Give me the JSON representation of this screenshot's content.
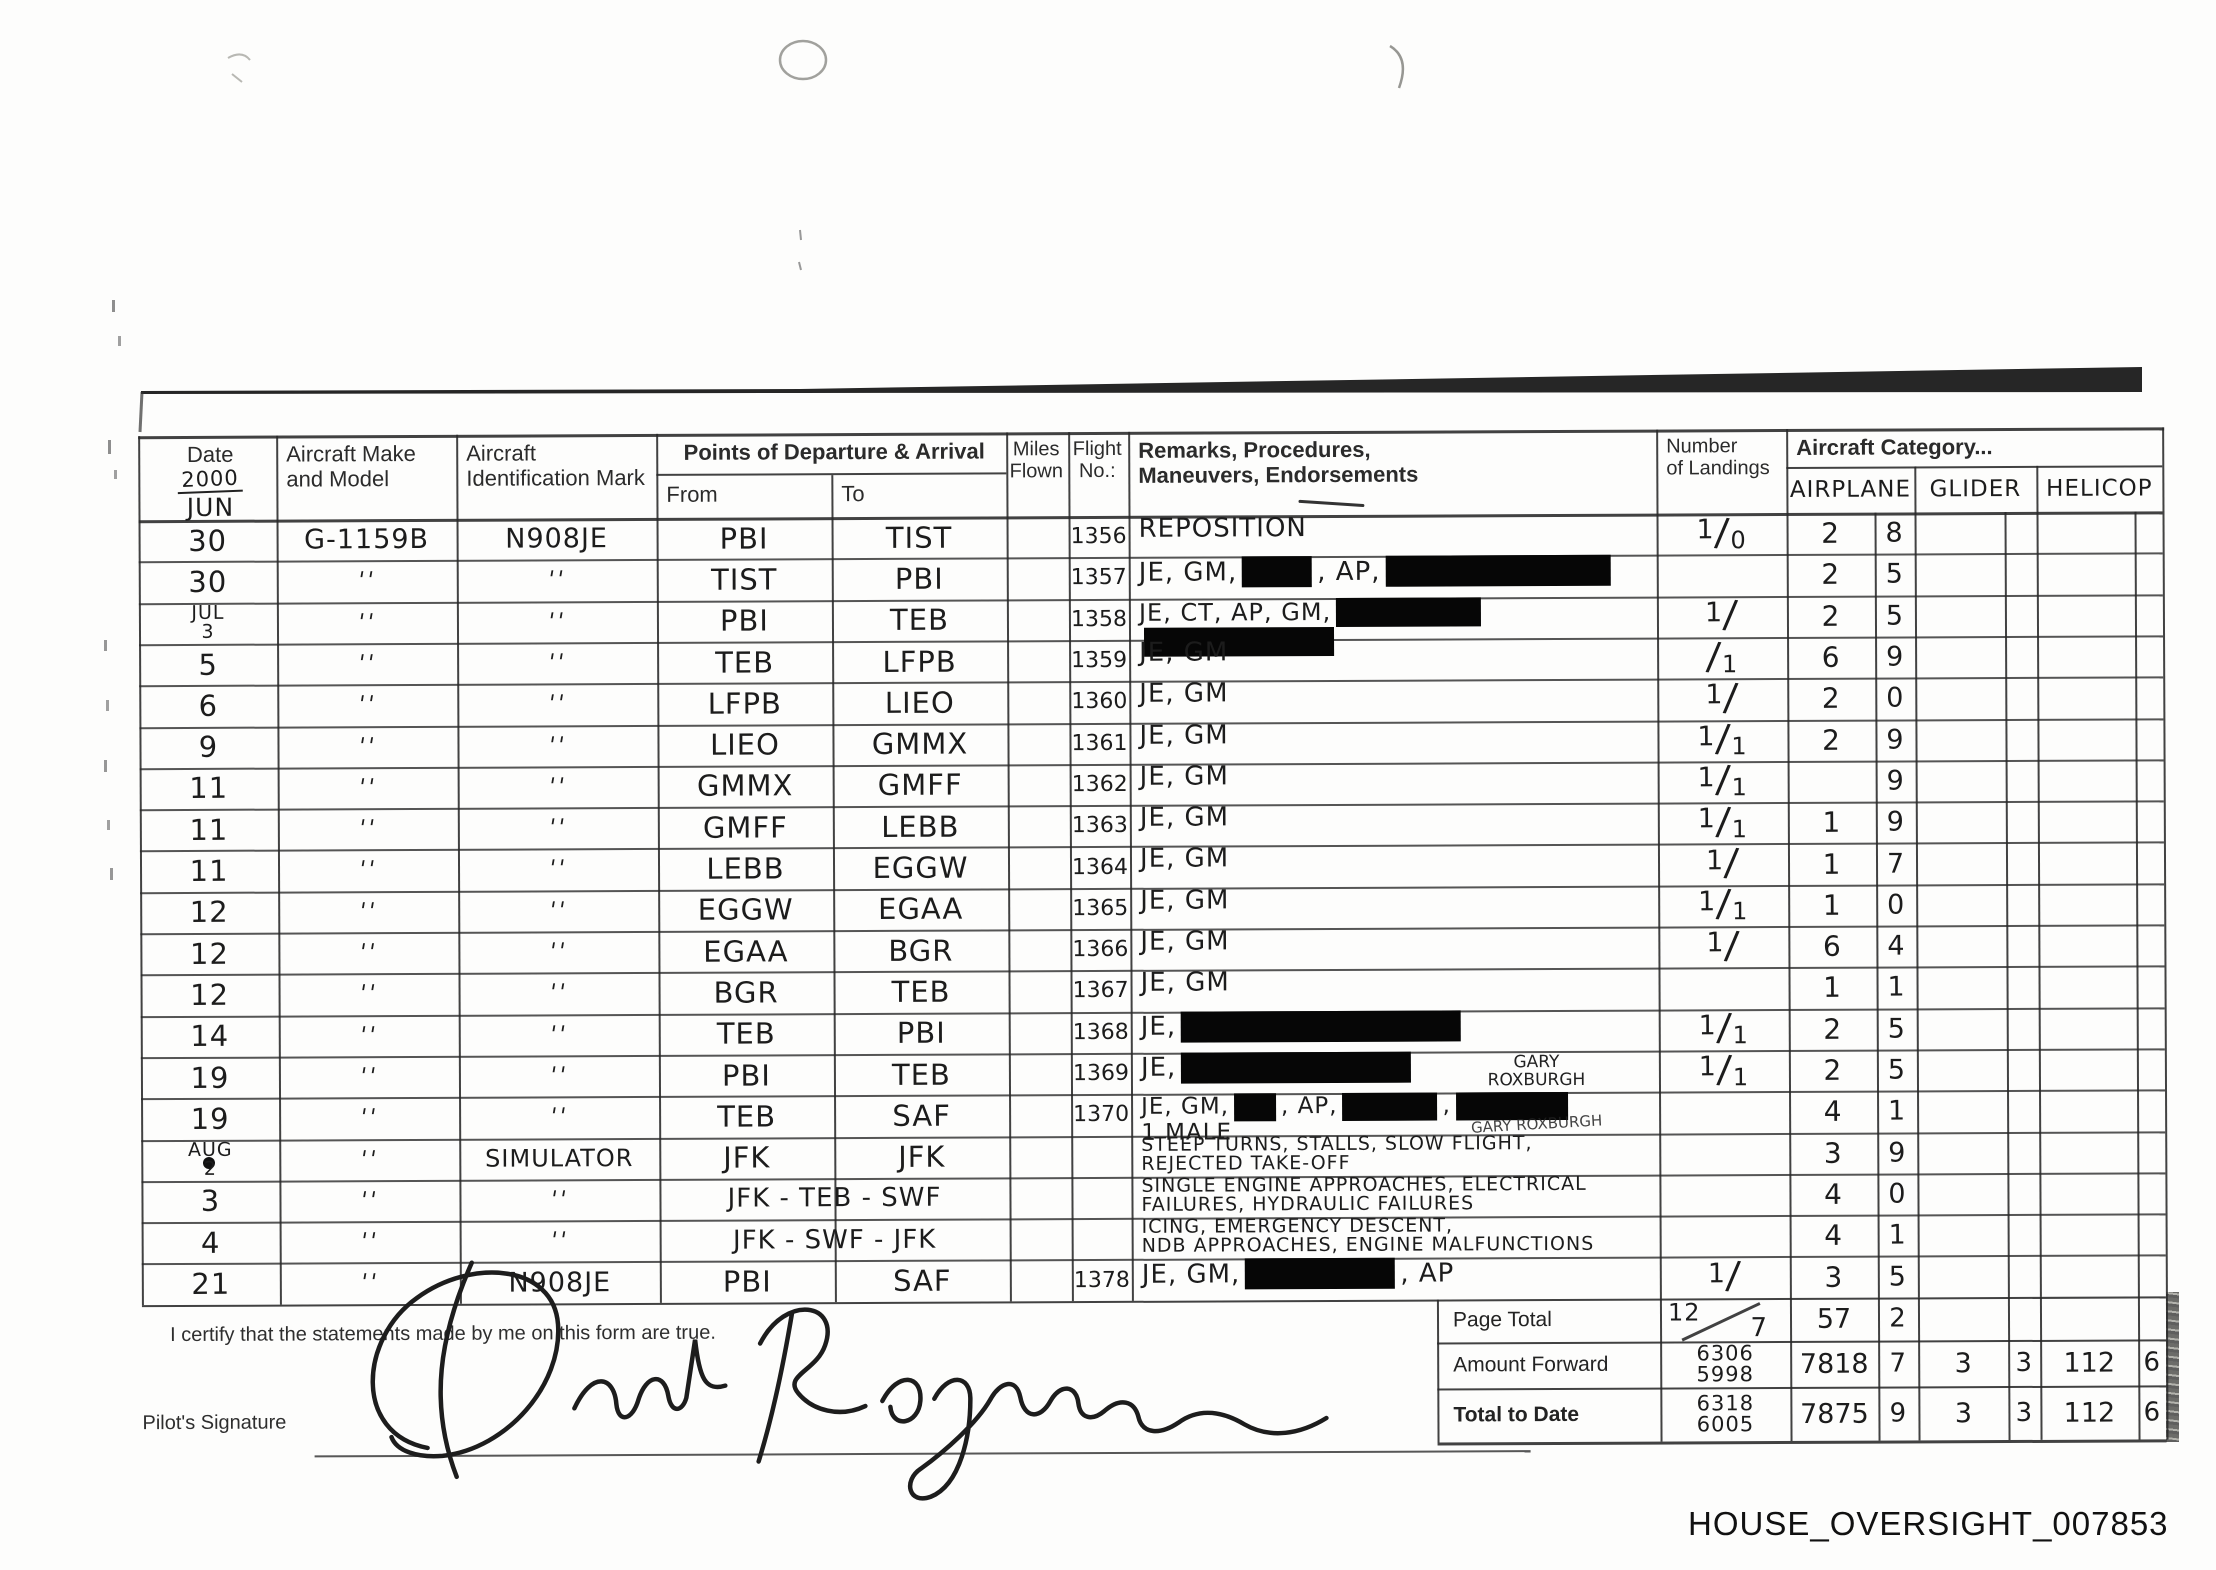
{
  "document": {
    "footer_id": "HOUSE_OVERSIGHT_007853",
    "certification": "I certify that the statements made by me on this form are true.",
    "signature_label": "Pilot's Signature",
    "signature_name": "David Rodgers"
  },
  "header": {
    "date_label": "Date",
    "date_year_hw": "2000",
    "date_month_hw": "JUN",
    "make_l1": "Aircraft Make",
    "make_l2": "and Model",
    "ident_l1": "Aircraft",
    "ident_l2": "Identification Mark",
    "points": "Points of Departure & Arrival",
    "from": "From",
    "to": "To",
    "miles_l1": "Miles",
    "miles_l2": "Flown",
    "flight_l1": "Flight",
    "flight_l2": "No.:",
    "remarks_l1": "Remarks, Procedures,",
    "remarks_l2": "Maneuvers, Endorsements",
    "landings_l1": "Number",
    "landings_l2": "of Landings",
    "category": "Aircraft Category...",
    "cat_airplane": "AIRPLANE",
    "cat_glider": "GLIDER",
    "cat_helicop": "HELICOP"
  },
  "rows": [
    {
      "date": "30",
      "make": "G-1159B",
      "ident": "N908JE",
      "from": "PBI",
      "to": "TIST",
      "flight": "1356",
      "remarks": [
        [
          "REPOSITION"
        ]
      ],
      "landings": "1/0",
      "air": [
        "2",
        "8"
      ]
    },
    {
      "date": "30",
      "make": "''",
      "ident": "''",
      "from": "TIST",
      "to": "PBI",
      "flight": "1357",
      "remarks": [
        [
          "JE, GM,",
          {
            "redact": 70
          },
          ", AP,",
          {
            "redact": 225
          }
        ]
      ],
      "landings": "",
      "air": [
        "2",
        "5"
      ]
    },
    {
      "date": [
        "JUL",
        "3"
      ],
      "make": "''",
      "ident": "''",
      "from": "PBI",
      "to": "TEB",
      "flight": "1358",
      "remarks": [
        [
          "JE, CT, AP, GM,",
          {
            "redact": 145
          }
        ],
        [
          {
            "redact": 190
          }
        ]
      ],
      "landings": "1/",
      "air": [
        "2",
        "5"
      ],
      "fs": 24
    },
    {
      "date": "5",
      "make": "''",
      "ident": "''",
      "from": "TEB",
      "to": "LFPB",
      "flight": "1359",
      "remarks": [
        [
          "JE, GM"
        ]
      ],
      "landings": "/1",
      "air": [
        "6",
        "9"
      ]
    },
    {
      "date": "6",
      "make": "''",
      "ident": "''",
      "from": "LFPB",
      "to": "LIEO",
      "flight": "1360",
      "remarks": [
        [
          "JE, GM"
        ]
      ],
      "landings": "1/",
      "air": [
        "2",
        "0"
      ]
    },
    {
      "date": "9",
      "make": "''",
      "ident": "''",
      "from": "LIEO",
      "to": "GMMX",
      "flight": "1361",
      "remarks": [
        [
          "JE, GM"
        ]
      ],
      "landings": "1/1",
      "air": [
        "2",
        "9"
      ]
    },
    {
      "date": "11",
      "make": "''",
      "ident": "''",
      "from": "GMMX",
      "to": "GMFF",
      "flight": "1362",
      "remarks": [
        [
          "JE, GM"
        ]
      ],
      "landings": "1/1",
      "air": [
        "",
        "9"
      ]
    },
    {
      "date": "11",
      "make": "''",
      "ident": "''",
      "from": "GMFF",
      "to": "LEBB",
      "flight": "1363",
      "remarks": [
        [
          "JE, GM"
        ]
      ],
      "landings": "1/1",
      "air": [
        "1",
        "9"
      ]
    },
    {
      "date": "11",
      "make": "''",
      "ident": "''",
      "from": "LEBB",
      "to": "EGGW",
      "flight": "1364",
      "remarks": [
        [
          "JE, GM"
        ]
      ],
      "landings": "1/",
      "air": [
        "1",
        "7"
      ]
    },
    {
      "date": "12",
      "make": "''",
      "ident": "''",
      "from": "EGGW",
      "to": "EGAA",
      "flight": "1365",
      "remarks": [
        [
          "JE, GM"
        ]
      ],
      "landings": "1/1",
      "air": [
        "1",
        "0"
      ]
    },
    {
      "date": "12",
      "make": "''",
      "ident": "''",
      "from": "EGAA",
      "to": "BGR",
      "flight": "1366",
      "remarks": [
        [
          "JE, GM"
        ]
      ],
      "landings": "1/",
      "air": [
        "6",
        "4"
      ]
    },
    {
      "date": "12",
      "make": "''",
      "ident": "''",
      "from": "BGR",
      "to": "TEB",
      "flight": "1367",
      "remarks": [
        [
          "JE, GM"
        ]
      ],
      "landings": "",
      "air": [
        "1",
        "1"
      ]
    },
    {
      "date": "14",
      "make": "''",
      "ident": "''",
      "from": "TEB",
      "to": "PBI",
      "flight": "1368",
      "remarks": [
        [
          "JE,",
          {
            "redact": 280
          }
        ]
      ],
      "landings": "1/1",
      "air": [
        "2",
        "5"
      ]
    },
    {
      "date": "19",
      "make": "''",
      "ident": "''",
      "from": "PBI",
      "to": "TEB",
      "flight": "1369",
      "remarks": [
        [
          "JE,",
          {
            "redact": 230
          }
        ]
      ],
      "note": "GARY\nROXBURGH",
      "note_v": "top",
      "landings": "1/1",
      "air": [
        "2",
        "5"
      ]
    },
    {
      "date": "19",
      "make": "''",
      "ident": "''",
      "from": "TEB",
      "to": "SAF",
      "flight": "1370",
      "remarks": [
        [
          "JE, GM,",
          {
            "redact": 42
          },
          ", AP,",
          {
            "redact": 95
          },
          ",",
          {
            "redact": 112
          }
        ],
        [
          "1 MALE"
        ]
      ],
      "note": "GARY ROXBURGH",
      "note_v": "bottom",
      "landings": "",
      "air": [
        "4",
        "1"
      ],
      "fs": 23
    },
    {
      "date": [
        "AUG",
        "2"
      ],
      "make": "''",
      "ident": "SIMULATOR",
      "from": "JFK",
      "to": "JFK",
      "flight": "",
      "remarks": [
        [
          "STEEP TURNS, STALLS, SLOW FLIGHT,"
        ],
        [
          "REJECTED TAKE-OFF"
        ]
      ],
      "landings": "",
      "air": [
        "3",
        "9"
      ],
      "fs": 19
    },
    {
      "date": "3",
      "make": "''",
      "ident": "''",
      "route": "JFK - TEB - SWF",
      "flight": "",
      "remarks": [
        [
          "SINGLE ENGINE APPROACHES, ELECTRICAL"
        ],
        [
          "FAILURES, HYDRAULIC FAILURES"
        ]
      ],
      "landings": "",
      "air": [
        "4",
        "0"
      ],
      "fs": 19
    },
    {
      "date": "4",
      "make": "''",
      "ident": "''",
      "route": "JFK - SWF - JFK",
      "flight": "",
      "remarks": [
        [
          "ICING, EMERGENCY DESCENT,"
        ],
        [
          "NDB APPROACHES, ENGINE MALFUNCTIONS"
        ]
      ],
      "landings": "",
      "air": [
        "4",
        "1"
      ],
      "fs": 19
    },
    {
      "date": "21",
      "make": "''",
      "ident": "N908JE",
      "from": "PBI",
      "to": "SAF",
      "flight": "1378",
      "remarks": [
        [
          "JE, GM,",
          {
            "redact": 150
          },
          ", AP"
        ]
      ],
      "landings": "1/",
      "air": [
        "3",
        "5"
      ]
    }
  ],
  "summary": [
    {
      "key": "page_total",
      "label": "Page Total",
      "landings": "12/7",
      "air": [
        "57",
        "2"
      ],
      "glider": [
        "",
        ""
      ],
      "heli": [
        "",
        ""
      ]
    },
    {
      "key": "amount_forward",
      "label": "Amount Forward",
      "landings": "6306/5998",
      "air": [
        "7818",
        "7"
      ],
      "glider": [
        "3",
        "3"
      ],
      "heli": [
        "112",
        "6"
      ]
    },
    {
      "key": "total_to_date",
      "label": "Total to Date",
      "landings": "6318/6005",
      "air": [
        "7875",
        "9"
      ],
      "glider": [
        "3",
        "3"
      ],
      "heli": [
        "112",
        "6"
      ]
    }
  ]
}
